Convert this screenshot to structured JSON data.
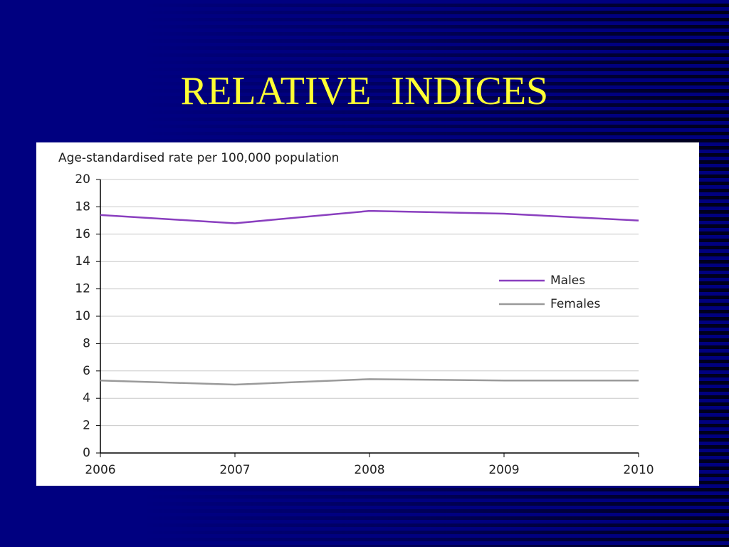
{
  "title": "RELATIVE  INDICES",
  "chart_data": {
    "type": "line",
    "title": "Age-standardised rate per 100,000  population",
    "x": [
      2006,
      2007,
      2008,
      2009,
      2010
    ],
    "xlim": [
      2006,
      2010
    ],
    "xticks": [
      2006,
      2007,
      2008,
      2009,
      2010
    ],
    "ylim": [
      0,
      20
    ],
    "yticks": [
      0,
      2,
      4,
      6,
      8,
      10,
      12,
      14,
      16,
      18,
      20
    ],
    "grid": true,
    "legend": "right",
    "series": [
      {
        "name": "Males",
        "color": "#8a3fbf",
        "values": [
          17.4,
          16.8,
          17.7,
          17.5,
          17.0
        ]
      },
      {
        "name": "Females",
        "color": "#9a9a9a",
        "values": [
          5.3,
          5.0,
          5.4,
          5.3,
          5.3
        ]
      }
    ]
  }
}
